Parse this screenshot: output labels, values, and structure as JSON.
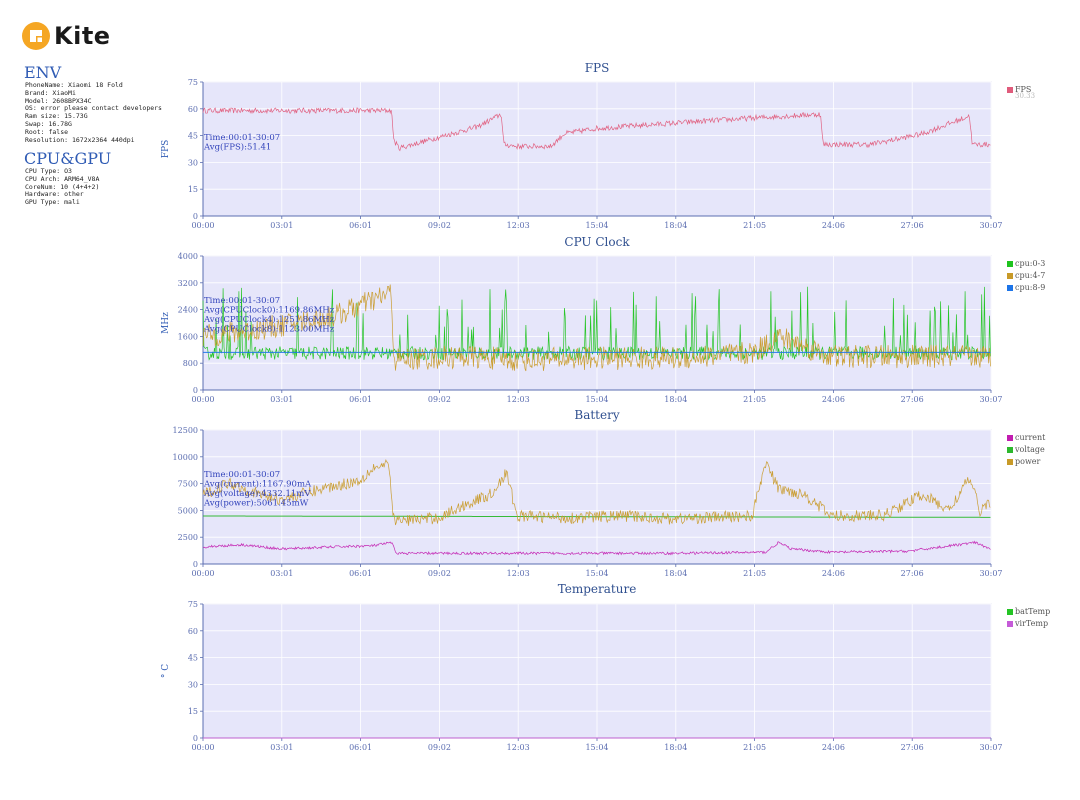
{
  "brand": {
    "name": "Kite",
    "color": "#f5a623"
  },
  "env": {
    "title": "ENV",
    "lines": [
      "PhoneName: Xiaomi 18 Fold",
      "Brand: XiaoMi",
      "Model: 2608BPX34C",
      "OS: error please contact developers",
      "Ram size: 15.73G",
      "Swap: 16.78G",
      "Root: false",
      "Resolution: 1672x2364 440dpi"
    ]
  },
  "cpu_gpu": {
    "title": "CPU&GPU",
    "lines": [
      "CPU Type: O3",
      "CPU Arch: ARM64_V8A",
      "CoreNum: 10 (4+4+2)",
      "Hardware: other",
      "GPU Type: mali"
    ]
  },
  "chart_data": [
    {
      "type": "line",
      "title": "FPS",
      "ylabel": "FPS",
      "ylim": [
        0,
        75
      ],
      "yticks": [
        0,
        15,
        30,
        45,
        60,
        75
      ],
      "categories": [
        "00:00",
        "03:01",
        "06:01",
        "09:02",
        "12:03",
        "15:04",
        "18:04",
        "21:05",
        "24:06",
        "27:06",
        "30:07"
      ],
      "grid": true,
      "legend_position": "right",
      "annotation": [
        "Time:00:01-30:07",
        "Avg(FPS):51.41"
      ],
      "legend_extra": "30.33",
      "series": [
        {
          "name": "FPS",
          "color": "#e05c7c",
          "keypoints": [
            [
              0,
              59
            ],
            [
              7.2,
              59
            ],
            [
              7.3,
              42
            ],
            [
              7.5,
              38
            ],
            [
              9,
              44
            ],
            [
              10.5,
              50
            ],
            [
              11.4,
              57
            ],
            [
              11.5,
              40
            ],
            [
              12,
              39
            ],
            [
              13.3,
              39
            ],
            [
              13.8,
              46
            ],
            [
              15,
              49
            ],
            [
              17,
              51
            ],
            [
              19,
              53
            ],
            [
              21.2,
              55
            ],
            [
              23.6,
              57
            ],
            [
              23.7,
              40
            ],
            [
              25.5,
              40
            ],
            [
              27.5,
              46
            ],
            [
              29.3,
              56
            ],
            [
              29.4,
              40
            ],
            [
              30.1,
              40
            ]
          ],
          "noise": 1.5
        }
      ]
    },
    {
      "type": "line",
      "title": "CPU Clock",
      "ylabel": "MHz",
      "ylim": [
        0,
        4000
      ],
      "yticks": [
        0,
        800,
        1600,
        2400,
        3200,
        4000
      ],
      "categories": [
        "00:00",
        "03:01",
        "06:01",
        "09:02",
        "12:03",
        "15:04",
        "18:04",
        "21:05",
        "24:06",
        "27:06",
        "30:07"
      ],
      "grid": true,
      "legend_position": "right",
      "annotation": [
        "Time:00:01-30:07",
        "Avg(CPUClock0):1169.86MHz",
        "Avg(CPUClock4):1251.86MHz",
        "Avg(CPUClock8):1123.00MHz"
      ],
      "series": [
        {
          "name": "cpu:0-3",
          "color": "#1ec31e",
          "keypoints": [
            [
              0,
              1100
            ],
            [
              30.1,
              1100
            ]
          ],
          "noise": 200,
          "spikes": {
            "count": 85,
            "max": 3100
          }
        },
        {
          "name": "cpu:4-7",
          "color": "#c89a28",
          "keypoints": [
            [
              0,
              1600
            ],
            [
              2,
              1800
            ],
            [
              3.5,
              2000
            ],
            [
              5,
              2200
            ],
            [
              7.2,
              2900
            ],
            [
              7.3,
              900
            ],
            [
              10,
              1000
            ],
            [
              12,
              900
            ],
            [
              15,
              950
            ],
            [
              18,
              950
            ],
            [
              21,
              1100
            ],
            [
              22,
              1600
            ],
            [
              24,
              1000
            ],
            [
              27,
              1000
            ],
            [
              30.1,
              1000
            ]
          ],
          "noise": 350
        },
        {
          "name": "cpu:8-9",
          "color": "#1c74e8",
          "keypoints": [
            [
              0,
              1123
            ],
            [
              30.1,
              1123
            ]
          ],
          "noise": 0
        }
      ]
    },
    {
      "type": "line",
      "title": "Battery",
      "ylabel": "",
      "ylim": [
        0,
        12500
      ],
      "yticks": [
        0,
        2500,
        5000,
        7500,
        10000,
        12500
      ],
      "categories": [
        "00:00",
        "03:01",
        "06:01",
        "09:02",
        "12:03",
        "15:04",
        "18:04",
        "21:05",
        "24:06",
        "27:06",
        "30:07"
      ],
      "grid": true,
      "legend_position": "right",
      "annotation": [
        "Time:00:01-30:07",
        "Avg(current):1167.90mA",
        "Avg(voltage):4332.11mV",
        "Avg(power):5061.45mW"
      ],
      "series": [
        {
          "name": "current",
          "color": "#c21cb0",
          "keypoints": [
            [
              0,
              1600
            ],
            [
              1.5,
              1800
            ],
            [
              3,
              1400
            ],
            [
              5,
              1600
            ],
            [
              6.5,
              1700
            ],
            [
              7.2,
              2000
            ],
            [
              7.4,
              1000
            ],
            [
              12,
              1000
            ],
            [
              15,
              1000
            ],
            [
              18,
              1000
            ],
            [
              21.5,
              1100
            ],
            [
              22,
              2000
            ],
            [
              22.5,
              1400
            ],
            [
              24,
              1100
            ],
            [
              27,
              1200
            ],
            [
              29.5,
              2000
            ],
            [
              30.1,
              1400
            ]
          ],
          "noise": 120
        },
        {
          "name": "voltage",
          "color": "#2db82d",
          "keypoints": [
            [
              0,
              4480
            ],
            [
              30.1,
              4350
            ]
          ],
          "noise": 0
        },
        {
          "name": "power",
          "color": "#c89a28",
          "keypoints": [
            [
              0,
              6400
            ],
            [
              1,
              7600
            ],
            [
              2,
              6600
            ],
            [
              3,
              6000
            ],
            [
              4.5,
              7000
            ],
            [
              6,
              7800
            ],
            [
              6.5,
              9000
            ],
            [
              7.1,
              9200
            ],
            [
              7.3,
              4000
            ],
            [
              9,
              4300
            ],
            [
              10,
              5500
            ],
            [
              11,
              6500
            ],
            [
              11.6,
              8500
            ],
            [
              12,
              4500
            ],
            [
              14,
              4300
            ],
            [
              16,
              4500
            ],
            [
              18,
              4200
            ],
            [
              21,
              4500
            ],
            [
              21.5,
              9500
            ],
            [
              22,
              7000
            ],
            [
              23,
              6500
            ],
            [
              24,
              4500
            ],
            [
              26,
              4500
            ],
            [
              27.5,
              6500
            ],
            [
              28.5,
              5000
            ],
            [
              29.3,
              8000
            ],
            [
              29.7,
              5000
            ],
            [
              30.1,
              5800
            ]
          ],
          "noise": 550
        }
      ]
    },
    {
      "type": "line",
      "title": "Temperature",
      "ylabel": "° C",
      "ylim": [
        0,
        75
      ],
      "yticks": [
        0,
        15,
        30,
        45,
        60,
        75
      ],
      "categories": [
        "00:00",
        "03:01",
        "06:01",
        "09:02",
        "12:03",
        "15:04",
        "18:04",
        "21:05",
        "24:06",
        "27:06",
        "30:07"
      ],
      "grid": true,
      "legend_position": "right",
      "annotation": [],
      "series": [
        {
          "name": "batTemp",
          "color": "#24c424",
          "keypoints": [
            [
              0,
              0
            ],
            [
              30.1,
              0
            ]
          ],
          "noise": 0
        },
        {
          "name": "virTemp",
          "color": "#c55bd8",
          "keypoints": [
            [
              0,
              0
            ],
            [
              30.1,
              0
            ]
          ],
          "noise": 0
        }
      ]
    }
  ]
}
